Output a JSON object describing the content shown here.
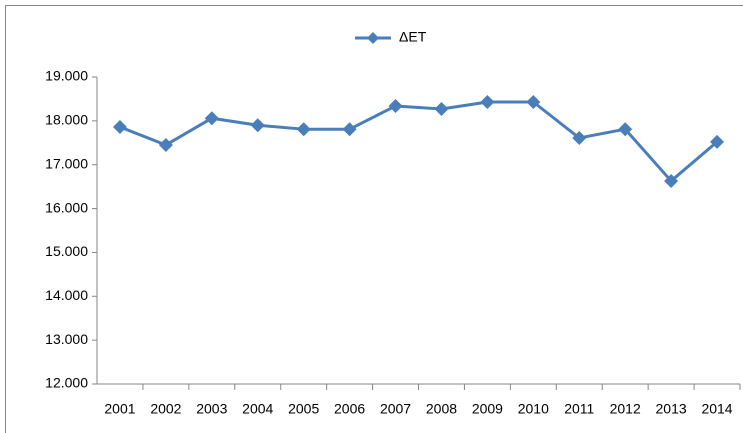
{
  "chart_data": {
    "type": "line",
    "categories": [
      "2001",
      "2002",
      "2003",
      "2004",
      "2005",
      "2006",
      "2007",
      "2008",
      "2009",
      "2010",
      "2011",
      "2012",
      "2013",
      "2014"
    ],
    "series": [
      {
        "name": "ΔΕΤ",
        "color": "#4a7ebb",
        "values": [
          17860,
          17450,
          18060,
          17900,
          17810,
          17810,
          18340,
          18270,
          18430,
          18430,
          17610,
          17810,
          16630,
          17520
        ]
      }
    ],
    "ylim": [
      12000,
      19000
    ],
    "yticks": [
      {
        "value": 12000,
        "label": "12.000"
      },
      {
        "value": 13000,
        "label": "13.000"
      },
      {
        "value": 14000,
        "label": "14.000"
      },
      {
        "value": 15000,
        "label": "15.000"
      },
      {
        "value": 16000,
        "label": "16.000"
      },
      {
        "value": 17000,
        "label": "17.000"
      },
      {
        "value": 18000,
        "label": "18.000"
      },
      {
        "value": 19000,
        "label": "19.000"
      }
    ],
    "grid": false,
    "legend": "top"
  }
}
